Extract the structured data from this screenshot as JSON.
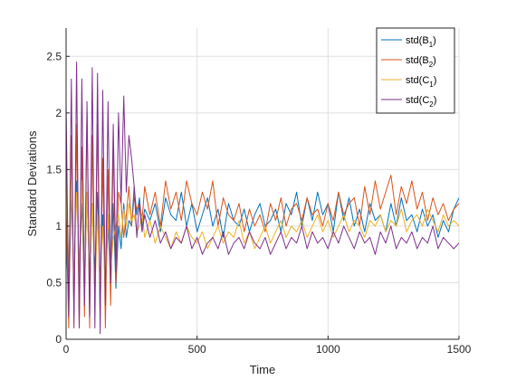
{
  "chart_data": {
    "type": "line",
    "xlabel": "Time",
    "ylabel": "Standard Deviations",
    "xlim": [
      0,
      1500
    ],
    "ylim": [
      0,
      2.75
    ],
    "xticks": [
      0,
      500,
      1000,
      1500
    ],
    "yticks": [
      0,
      0.5,
      1,
      1.5,
      2,
      2.5
    ],
    "xtick_labels": [
      "0",
      "500",
      "1000",
      "1500"
    ],
    "ytick_labels": [
      "0",
      "0.5",
      "1",
      "1.5",
      "2",
      "2.5"
    ],
    "grid": true,
    "legend_position": "top-right",
    "series": [
      {
        "name": "std(B1)",
        "label_main": "std(B",
        "label_sub": "1",
        "label_end": ")",
        "color": "#0072BD",
        "x": [
          0,
          10,
          20,
          30,
          40,
          50,
          60,
          70,
          80,
          90,
          100,
          110,
          120,
          130,
          140,
          150,
          160,
          170,
          180,
          190,
          200,
          210,
          220,
          230,
          240,
          250,
          260,
          270,
          280,
          290,
          300,
          320,
          340,
          360,
          380,
          400,
          420,
          440,
          460,
          480,
          500,
          520,
          540,
          560,
          580,
          600,
          620,
          640,
          660,
          680,
          700,
          720,
          740,
          760,
          780,
          800,
          820,
          840,
          860,
          880,
          900,
          920,
          940,
          960,
          980,
          1000,
          1020,
          1040,
          1060,
          1080,
          1100,
          1120,
          1140,
          1160,
          1180,
          1200,
          1220,
          1240,
          1260,
          1280,
          1300,
          1320,
          1340,
          1360,
          1380,
          1400,
          1420,
          1440,
          1460,
          1480,
          1500
        ],
        "y": [
          0.9,
          0.3,
          1.3,
          0.5,
          1.4,
          0.6,
          1.2,
          0.4,
          1.3,
          0.5,
          1.2,
          0.6,
          1.3,
          0.5,
          1.1,
          0.4,
          1.0,
          0.5,
          1.2,
          0.45,
          1.0,
          0.8,
          1.2,
          0.9,
          1.05,
          1.0,
          1.35,
          1.1,
          1.25,
          1.0,
          1.15,
          1.05,
          1.2,
          0.95,
          1.25,
          1.1,
          1.05,
          1.3,
          1.0,
          1.2,
          0.95,
          1.1,
          1.25,
          1.0,
          1.15,
          0.9,
          1.2,
          1.05,
          1.0,
          1.15,
          0.95,
          1.1,
          1.2,
          1.0,
          1.05,
          1.15,
          0.95,
          1.2,
          1.1,
          1.3,
          1.0,
          1.25,
          1.05,
          1.3,
          1.1,
          1.2,
          0.95,
          1.3,
          1.05,
          1.25,
          1.0,
          1.15,
          0.95,
          1.2,
          1.05,
          1.1,
          0.95,
          1.2,
          1.0,
          1.25,
          1.05,
          1.1,
          0.95,
          1.15,
          1.0,
          1.1,
          0.9,
          1.05,
          0.95,
          1.15,
          1.25
        ]
      },
      {
        "name": "std(B2)",
        "label_main": "std(B",
        "label_sub": "2",
        "label_end": ")",
        "color": "#D95319",
        "x": [
          0,
          10,
          20,
          30,
          40,
          50,
          60,
          70,
          80,
          90,
          100,
          110,
          120,
          130,
          140,
          150,
          160,
          170,
          180,
          190,
          200,
          210,
          220,
          230,
          240,
          250,
          260,
          270,
          280,
          290,
          300,
          320,
          340,
          360,
          380,
          400,
          420,
          440,
          460,
          480,
          500,
          520,
          540,
          560,
          580,
          600,
          620,
          640,
          660,
          680,
          700,
          720,
          740,
          760,
          780,
          800,
          820,
          840,
          860,
          880,
          900,
          920,
          940,
          960,
          980,
          1000,
          1020,
          1040,
          1060,
          1080,
          1100,
          1120,
          1140,
          1160,
          1180,
          1200,
          1220,
          1240,
          1260,
          1280,
          1300,
          1320,
          1340,
          1360,
          1380,
          1400,
          1420,
          1440,
          1460,
          1480,
          1500
        ],
        "y": [
          1.2,
          0.1,
          1.8,
          0.2,
          1.9,
          0.1,
          1.7,
          0.2,
          2.0,
          0.1,
          1.8,
          0.3,
          1.9,
          0.2,
          1.6,
          0.1,
          1.5,
          0.3,
          1.7,
          0.5,
          1.3,
          1.2,
          0.9,
          1.1,
          1.35,
          1.0,
          1.25,
          1.15,
          1.2,
          1.05,
          1.35,
          1.1,
          1.3,
          1.0,
          1.4,
          1.15,
          1.3,
          1.05,
          1.4,
          1.2,
          1.1,
          1.3,
          1.15,
          1.4,
          1.0,
          1.25,
          1.1,
          1.05,
          1.2,
          0.95,
          1.15,
          1.0,
          1.1,
          0.95,
          1.2,
          1.05,
          1.25,
          1.0,
          1.15,
          1.2,
          1.05,
          1.25,
          1.1,
          1.15,
          1.0,
          1.2,
          1.05,
          1.3,
          1.1,
          1.2,
          1.25,
          1.0,
          1.35,
          1.1,
          1.4,
          1.15,
          1.3,
          1.45,
          1.1,
          1.35,
          1.2,
          1.4,
          1.15,
          1.3,
          1.05,
          1.25,
          1.1,
          1.2,
          1.05,
          1.15,
          1.2
        ]
      },
      {
        "name": "std(C1)",
        "label_main": "std(C",
        "label_sub": "1",
        "label_end": ")",
        "color": "#EDB120",
        "x": [
          0,
          10,
          20,
          30,
          40,
          50,
          60,
          70,
          80,
          90,
          100,
          110,
          120,
          130,
          140,
          150,
          160,
          170,
          180,
          190,
          200,
          210,
          220,
          230,
          240,
          250,
          260,
          270,
          280,
          290,
          300,
          320,
          340,
          360,
          380,
          400,
          420,
          440,
          460,
          480,
          500,
          520,
          540,
          560,
          580,
          600,
          620,
          640,
          660,
          680,
          700,
          720,
          740,
          760,
          780,
          800,
          820,
          840,
          860,
          880,
          900,
          920,
          940,
          960,
          980,
          1000,
          1020,
          1040,
          1060,
          1080,
          1100,
          1120,
          1140,
          1160,
          1180,
          1200,
          1220,
          1240,
          1260,
          1280,
          1300,
          1320,
          1340,
          1360,
          1380,
          1400,
          1420,
          1440,
          1460,
          1480,
          1500
        ],
        "y": [
          1.5,
          0.6,
          1.4,
          0.5,
          1.3,
          0.6,
          1.4,
          0.4,
          1.3,
          0.5,
          1.2,
          0.4,
          1.1,
          0.5,
          1.0,
          0.4,
          1.1,
          0.6,
          0.9,
          1.0,
          1.1,
          0.9,
          1.15,
          1.0,
          1.2,
          1.05,
          1.1,
          0.95,
          1.0,
          1.1,
          0.9,
          1.05,
          0.85,
          1.0,
          0.9,
          0.8,
          0.95,
          0.85,
          1.0,
          0.9,
          0.85,
          0.95,
          0.8,
          0.9,
          1.0,
          0.85,
          0.95,
          0.9,
          1.05,
          0.85,
          0.95,
          0.8,
          0.9,
          1.0,
          0.85,
          0.95,
          1.05,
          0.9,
          1.0,
          0.95,
          1.05,
          0.9,
          1.0,
          1.1,
          0.95,
          1.05,
          0.9,
          1.0,
          1.1,
          0.95,
          1.05,
          1.0,
          0.9,
          1.05,
          1.0,
          1.1,
          0.95,
          1.05,
          1.0,
          1.15,
          0.95,
          1.05,
          1.1,
          1.0,
          1.15,
          1.05,
          0.95,
          1.1,
          1.0,
          1.05,
          1.0
        ]
      },
      {
        "name": "std(C2)",
        "label_main": "std(C",
        "label_sub": "2",
        "label_end": ")",
        "color": "#7E2F8E",
        "x": [
          0,
          10,
          20,
          30,
          40,
          50,
          60,
          70,
          80,
          90,
          100,
          110,
          120,
          130,
          140,
          150,
          160,
          170,
          180,
          190,
          200,
          210,
          220,
          230,
          240,
          250,
          260,
          270,
          280,
          290,
          300,
          320,
          340,
          360,
          380,
          400,
          420,
          440,
          460,
          480,
          500,
          520,
          540,
          560,
          580,
          600,
          620,
          640,
          660,
          680,
          700,
          720,
          740,
          760,
          780,
          800,
          820,
          840,
          860,
          880,
          900,
          920,
          940,
          960,
          980,
          1000,
          1020,
          1040,
          1060,
          1080,
          1100,
          1120,
          1140,
          1160,
          1180,
          1200,
          1220,
          1240,
          1260,
          1280,
          1300,
          1320,
          1340,
          1360,
          1380,
          1400,
          1420,
          1440,
          1460,
          1480,
          1500
        ],
        "y": [
          2.1,
          0.2,
          2.3,
          0.1,
          2.45,
          0.1,
          2.3,
          0.3,
          2.1,
          0.2,
          2.4,
          0.1,
          2.35,
          0.05,
          2.2,
          0.3,
          2.1,
          0.5,
          1.9,
          0.6,
          2.0,
          1.2,
          2.15,
          1.3,
          1.8,
          1.6,
          1.35,
          0.9,
          1.2,
          0.95,
          1.1,
          0.9,
          1.05,
          0.85,
          0.95,
          0.8,
          0.9,
          0.85,
          1.0,
          0.8,
          0.9,
          0.75,
          0.85,
          0.9,
          0.8,
          0.95,
          0.75,
          0.85,
          0.9,
          0.8,
          0.95,
          0.85,
          0.8,
          0.9,
          0.75,
          0.85,
          0.95,
          0.8,
          0.9,
          0.85,
          1.0,
          0.8,
          0.95,
          0.85,
          0.9,
          0.8,
          0.95,
          0.85,
          1.0,
          0.9,
          0.8,
          0.95,
          0.85,
          0.9,
          0.75,
          0.95,
          0.85,
          1.0,
          0.8,
          0.9,
          0.85,
          0.95,
          0.8,
          0.9,
          0.85,
          1.0,
          0.8,
          0.9,
          0.85,
          0.8,
          0.85
        ]
      }
    ]
  }
}
